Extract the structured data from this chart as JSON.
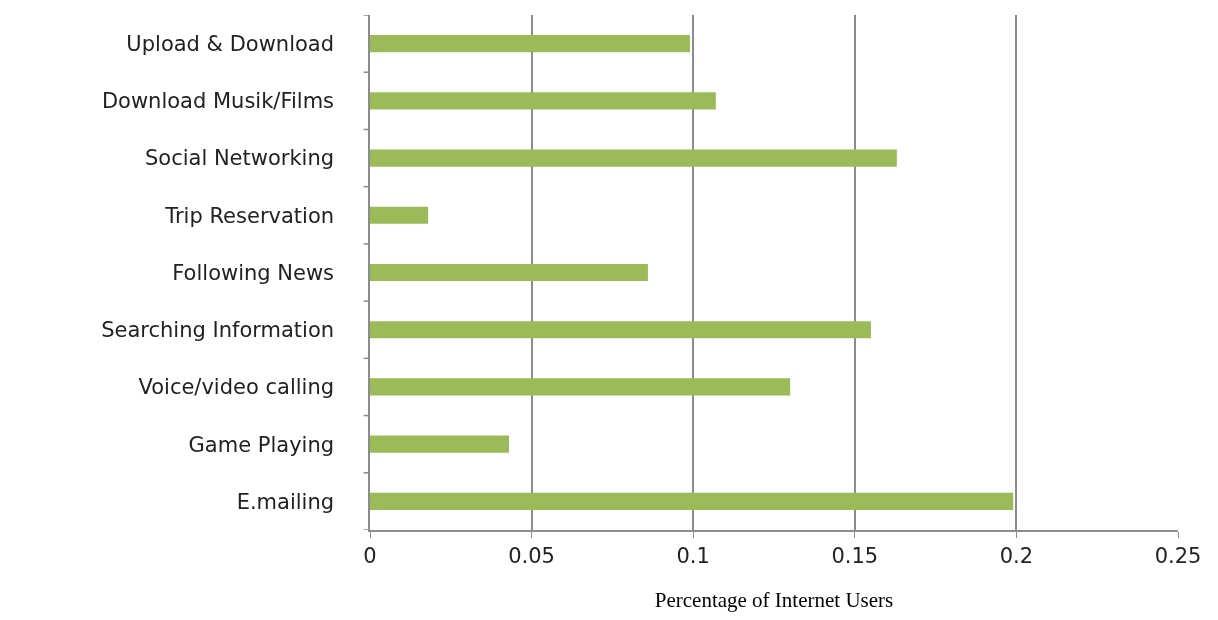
{
  "chart_data": {
    "type": "bar",
    "orientation": "horizontal",
    "xlabel": "Percentage of Internet Users",
    "categories": [
      "Upload & Download",
      "Download Musik/Films",
      "Social Networking",
      "Trip Reservation",
      "Following News",
      "Searching Information",
      "Voice/video calling",
      "Game Playing",
      "E.mailing"
    ],
    "values": [
      0.099,
      0.107,
      0.163,
      0.018,
      0.086,
      0.155,
      0.13,
      0.043,
      0.199
    ],
    "color": "#9bbb59",
    "xlim": [
      0,
      0.25
    ],
    "xticks": [
      0,
      0.05,
      0.1,
      0.15,
      0.2,
      0.25
    ],
    "grid": "x",
    "legend": false
  }
}
